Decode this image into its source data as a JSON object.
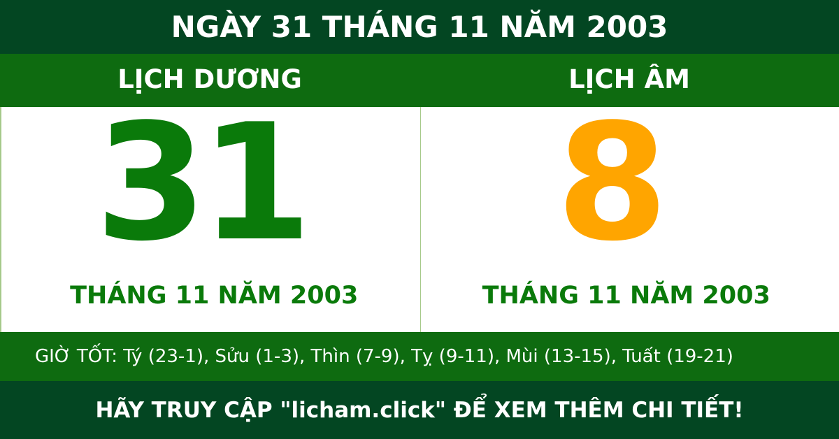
{
  "title": "NGÀY 31 THÁNG 11 NĂM 2003",
  "solar": {
    "heading": "LỊCH DƯƠNG",
    "day": "31",
    "month_year": "THÁNG 11 NĂM 2003"
  },
  "lunar": {
    "heading": "LỊCH ÂM",
    "day": "8",
    "month_year": "THÁNG 11 NĂM 2003"
  },
  "good_hours": "GIỜ TỐT: Tý (23-1), Sửu (1-3), Thìn (7-9), Tỵ (9-11), Mùi (13-15), Tuất (19-21)",
  "footer": "HÃY TRUY CẬP \"licham.click\" ĐỂ XEM THÊM CHI TIẾT!",
  "colors": {
    "dark_green": "#034622",
    "green": "#0e6b10",
    "solar_day": "#0a7a0a",
    "lunar_day": "#ffa500"
  }
}
